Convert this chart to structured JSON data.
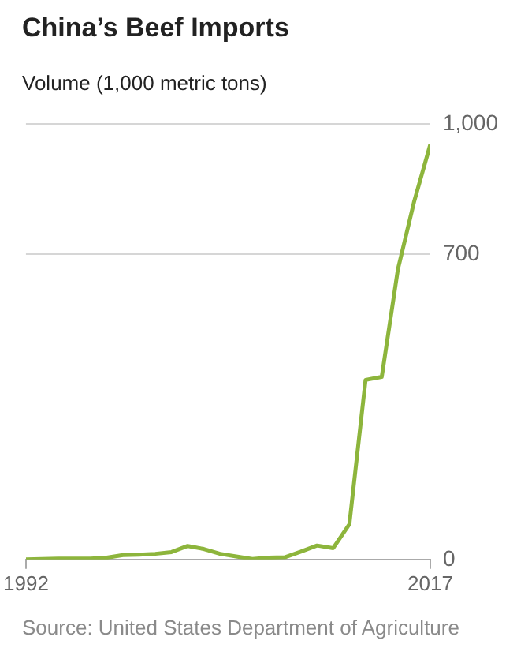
{
  "chart_data": {
    "type": "line",
    "title": "China’s Beef Imports",
    "subtitle": "Volume (1,000 metric tons)",
    "x": [
      1992,
      1993,
      1994,
      1995,
      1996,
      1997,
      1998,
      1999,
      2000,
      2001,
      2002,
      2003,
      2004,
      2005,
      2006,
      2007,
      2008,
      2009,
      2010,
      2011,
      2012,
      2013,
      2014,
      2015,
      2016,
      2017
    ],
    "series": [
      {
        "color": "#8db53c",
        "values": [
          0,
          1,
          2,
          2,
          2,
          4,
          10,
          11,
          13,
          17,
          31,
          24,
          13,
          7,
          1,
          4,
          5,
          18,
          32,
          26,
          81,
          412,
          419,
          666,
          821,
          952
        ]
      }
    ],
    "xlim": [
      1992,
      2017
    ],
    "xticks": [
      1992,
      2017
    ],
    "ylim": [
      0,
      1000
    ],
    "yticks": [
      0,
      700,
      {
        "value": 1000,
        "label": "1,000"
      }
    ],
    "grid": "y",
    "legend": false,
    "marker": "none",
    "line_style": "solid",
    "annotations": [
      "Source: United States Department of Agriculture"
    ]
  }
}
